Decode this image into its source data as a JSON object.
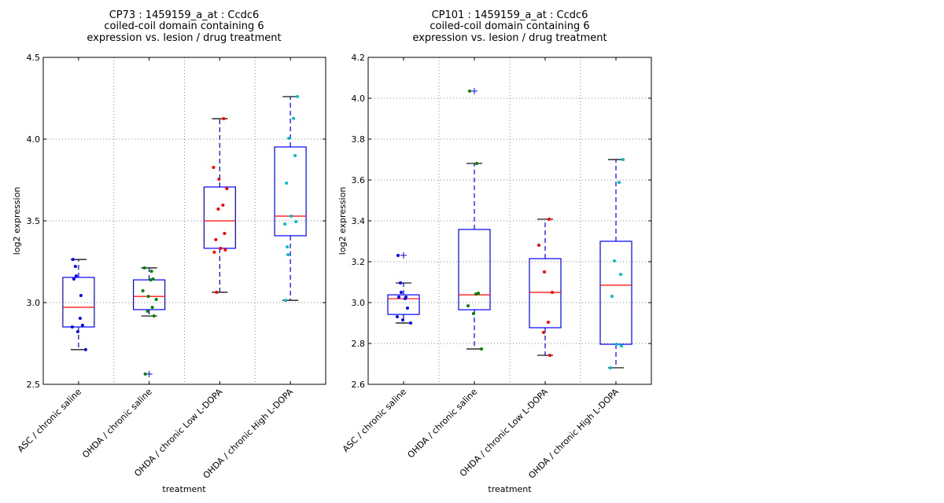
{
  "chart_data": [
    {
      "type": "boxplot",
      "title_lines": [
        "CP73 : 1459159_a_at : Ccdc6",
        "coiled-coil domain containing 6",
        "expression vs. lesion / drug treatment"
      ],
      "xlabel": "treatment",
      "ylabel": "log2 expression",
      "ylim": [
        2.5,
        4.5
      ],
      "yticks": [
        2.5,
        3.0,
        3.5,
        4.0,
        4.5
      ],
      "ytick_labels": [
        "2.5",
        "3.0",
        "3.5",
        "4.0",
        "4.5"
      ],
      "grid": true,
      "categories": [
        "ASC / chronic saline",
        "OHDA / chronic saline",
        "OHDA / chronic Low L-DOPA",
        "OHDA / chronic High L-DOPA"
      ],
      "point_colors": [
        "#0000ff",
        "#008000",
        "#ff0000",
        "#00bfbf"
      ],
      "boxes": [
        {
          "whisker_low": 2.712,
          "q1": 2.851,
          "median": 2.971,
          "q3": 3.154,
          "whisker_high": 3.264,
          "outliers": []
        },
        {
          "whisker_low": 2.918,
          "q1": 2.957,
          "median": 3.038,
          "q3": 3.139,
          "whisker_high": 3.212,
          "outliers": [
            2.563
          ]
        },
        {
          "whisker_low": 3.063,
          "q1": 3.332,
          "median": 3.5,
          "q3": 3.707,
          "whisker_high": 4.125,
          "outliers": []
        },
        {
          "whisker_low": 3.014,
          "q1": 3.409,
          "median": 3.529,
          "q3": 3.952,
          "whisker_high": 4.26,
          "outliers": []
        }
      ],
      "points": [
        [
          3.264,
          3.221,
          3.163,
          3.144,
          3.043,
          2.904,
          2.861,
          2.851,
          2.822,
          2.712
        ],
        [
          3.212,
          3.192,
          3.139,
          3.144,
          3.072,
          3.038,
          3.019,
          2.971,
          2.947,
          2.918,
          2.563
        ],
        [
          4.125,
          3.827,
          3.755,
          3.697,
          3.596,
          3.572,
          3.423,
          3.385,
          3.332,
          3.322,
          3.308,
          3.063
        ],
        [
          4.26,
          4.127,
          4.005,
          3.899,
          3.731,
          3.529,
          3.495,
          3.481,
          3.341,
          3.293,
          3.014
        ]
      ]
    },
    {
      "type": "boxplot",
      "title_lines": [
        "CP101 : 1459159_a_at : Ccdc6",
        "coiled-coil domain containing 6",
        "expression vs. lesion / drug treatment"
      ],
      "xlabel": "treatment",
      "ylabel": "log2 expression",
      "ylim": [
        2.6,
        4.2
      ],
      "yticks": [
        2.6,
        2.8,
        3.0,
        3.2,
        3.4,
        3.6,
        3.8,
        4.0,
        4.2
      ],
      "ytick_labels": [
        "2.6",
        "2.8",
        "3.0",
        "3.2",
        "3.4",
        "3.6",
        "3.8",
        "4.0",
        "4.2"
      ],
      "grid": true,
      "categories": [
        "ASC / chronic saline",
        "OHDA / chronic saline",
        "OHDA / chronic Low L-DOPA",
        "OHDA / chronic High L-DOPA"
      ],
      "point_colors": [
        "#0000ff",
        "#008000",
        "#ff0000",
        "#00bfbf"
      ],
      "boxes": [
        {
          "whisker_low": 2.9,
          "q1": 2.942,
          "median": 3.019,
          "q3": 3.038,
          "whisker_high": 3.096,
          "outliers": [
            3.231
          ]
        },
        {
          "whisker_low": 2.773,
          "q1": 2.965,
          "median": 3.038,
          "q3": 3.358,
          "whisker_high": 3.681,
          "outliers": [
            4.035
          ]
        },
        {
          "whisker_low": 2.742,
          "q1": 2.877,
          "median": 3.05,
          "q3": 3.215,
          "whisker_high": 3.408,
          "outliers": []
        },
        {
          "whisker_low": 2.681,
          "q1": 2.796,
          "median": 3.085,
          "q3": 3.3,
          "whisker_high": 3.7,
          "outliers": []
        }
      ],
      "points": [
        [
          3.231,
          3.096,
          3.05,
          3.027,
          3.027,
          3.019,
          2.973,
          2.931,
          2.915,
          2.9
        ],
        [
          4.035,
          3.681,
          3.042,
          3.046,
          2.984,
          2.946,
          2.773
        ],
        [
          3.408,
          3.281,
          3.15,
          3.05,
          2.904,
          2.854,
          2.742
        ],
        [
          3.7,
          3.588,
          3.204,
          3.138,
          3.031,
          2.796,
          2.788,
          2.681
        ]
      ]
    }
  ]
}
